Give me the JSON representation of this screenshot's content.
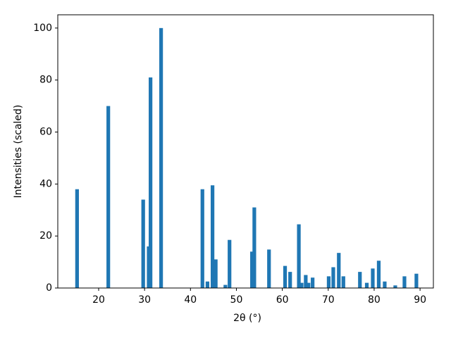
{
  "chart_data": {
    "type": "bar",
    "xlabel": "2θ (°)",
    "ylabel": "Intensities (scaled)",
    "color": "#1f77b4",
    "x": [
      15.3,
      22.1,
      29.7,
      30.9,
      31.3,
      33.6,
      42.6,
      43.7,
      44.8,
      45.5,
      47.6,
      48.5,
      53.4,
      53.9,
      57.1,
      60.6,
      61.7,
      63.6,
      64.2,
      65.1,
      65.7,
      66.6,
      70.1,
      71.1,
      72.3,
      73.3,
      76.9,
      78.4,
      79.7,
      81.0,
      82.3,
      84.6,
      86.6,
      89.2
    ],
    "values": [
      38,
      70,
      34,
      16,
      81,
      100,
      38,
      2.5,
      39.5,
      11,
      1.2,
      18.5,
      14,
      31,
      14.8,
      8.5,
      6.2,
      24.5,
      2,
      5,
      2,
      4,
      4.5,
      8,
      13.5,
      4.5,
      6.2,
      2,
      7.5,
      10.5,
      2.5,
      1,
      4.5,
      5.5
    ],
    "xlim": [
      11.1,
      92.9
    ],
    "ylim": [
      0,
      105.1
    ],
    "xticks": [
      20,
      30,
      40,
      50,
      60,
      70,
      80,
      90
    ],
    "yticks": [
      0,
      20,
      40,
      60,
      80,
      100
    ]
  }
}
